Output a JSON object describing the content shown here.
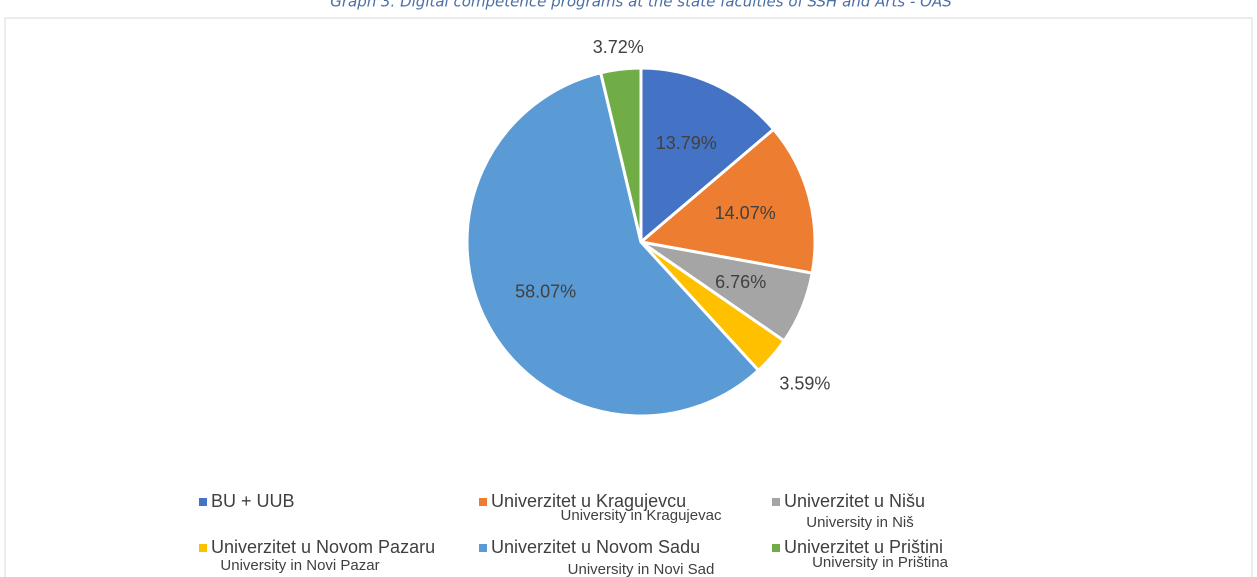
{
  "chart_data": {
    "type": "pie",
    "title": "Graph 3. Digital competence programs at the state faculties of SSH and Arts - OAS",
    "categories": [
      "BU + UUB",
      "Univerzitet u Kragujevcu",
      "Univerzitet u Nišu",
      "Univerzitet u Novom Pazaru",
      "Univerzitet u Novom Sadu",
      "Univerzitet u Prištini"
    ],
    "category_translations": [
      null,
      "University in Kragujevac",
      "University in Niš",
      "University in Novi Pazar",
      "University in Novi Sad",
      "University in Priština"
    ],
    "values": [
      13.79,
      14.07,
      6.76,
      3.59,
      58.07,
      3.72
    ],
    "value_labels": [
      "13.79%",
      "14.07%",
      "6.76%",
      "3.59%",
      "58.07%",
      "3.72%"
    ],
    "colors": [
      "#4472c4",
      "#ed7d31",
      "#a5a5a5",
      "#ffc000",
      "#5b9bd5",
      "#70ad47"
    ],
    "legend": "bottom"
  }
}
